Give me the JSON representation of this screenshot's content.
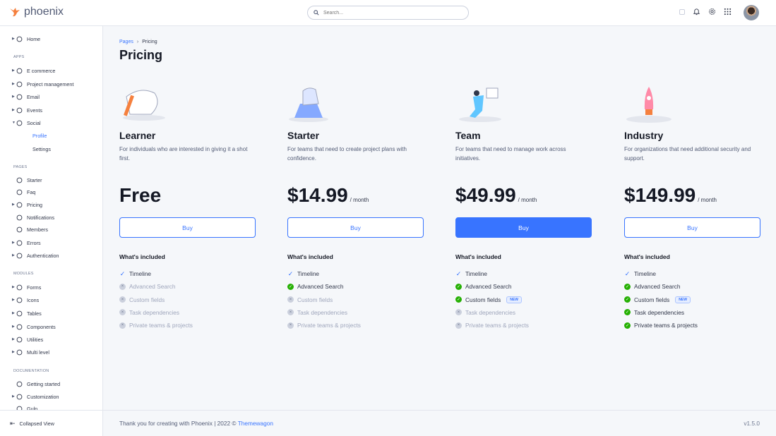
{
  "brand": {
    "name": "phoenix",
    "accent": "#3874ff",
    "logo_color": "#f5803e"
  },
  "search": {
    "placeholder": "Search..."
  },
  "topbar": {
    "icons": [
      "theme-toggle-icon",
      "bell-icon",
      "gear-icon",
      "apps-grid-icon"
    ]
  },
  "sidebar": {
    "items": [
      {
        "type": "item",
        "label": "Home",
        "icon": "pie-chart-icon",
        "caret": true
      },
      {
        "type": "section",
        "label": "APPS"
      },
      {
        "type": "item",
        "label": "E commerce",
        "icon": "cart-icon",
        "caret": true
      },
      {
        "type": "item",
        "label": "Project management",
        "icon": "clipboard-icon",
        "caret": true
      },
      {
        "type": "item",
        "label": "Email",
        "icon": "mail-icon",
        "caret": true
      },
      {
        "type": "item",
        "label": "Events",
        "icon": "bookmark-icon",
        "caret": true
      },
      {
        "type": "item",
        "label": "Social",
        "icon": "share-icon",
        "caret": true,
        "open": true
      },
      {
        "type": "sub",
        "label": "Profile",
        "active": true
      },
      {
        "type": "sub",
        "label": "Settings"
      },
      {
        "type": "section",
        "label": "PAGES"
      },
      {
        "type": "item",
        "label": "Starter",
        "icon": "compass-icon"
      },
      {
        "type": "item",
        "label": "Faq",
        "icon": "help-circle-icon"
      },
      {
        "type": "item",
        "label": "Pricing",
        "icon": "tag-icon",
        "caret": true
      },
      {
        "type": "item",
        "label": "Notifications",
        "icon": "bell-icon"
      },
      {
        "type": "item",
        "label": "Members",
        "icon": "users-icon"
      },
      {
        "type": "item",
        "label": "Errors",
        "icon": "alert-triangle-icon",
        "caret": true
      },
      {
        "type": "item",
        "label": "Authentication",
        "icon": "lock-icon",
        "caret": true
      },
      {
        "type": "section",
        "label": "MODULES"
      },
      {
        "type": "item",
        "label": "Forms",
        "icon": "file-text-icon",
        "caret": true
      },
      {
        "type": "item",
        "label": "Icons",
        "icon": "grid-icon",
        "caret": true
      },
      {
        "type": "item",
        "label": "Tables",
        "icon": "columns-icon",
        "caret": true
      },
      {
        "type": "item",
        "label": "Components",
        "icon": "package-icon",
        "caret": true
      },
      {
        "type": "item",
        "label": "Utilities",
        "icon": "tool-icon",
        "caret": true
      },
      {
        "type": "item",
        "label": "Multi level",
        "icon": "layers-icon",
        "caret": true
      },
      {
        "type": "section",
        "label": "DOCUMENTATION"
      },
      {
        "type": "item",
        "label": "Getting started",
        "icon": "life-buoy-icon"
      },
      {
        "type": "item",
        "label": "Customization",
        "icon": "settings-icon",
        "caret": true
      },
      {
        "type": "item",
        "label": "Gulp",
        "icon": "gulp-icon"
      }
    ],
    "collapse_label": "Collapsed View"
  },
  "breadcrumb": {
    "parent": "Pages",
    "current": "Pricing"
  },
  "page_title": "Pricing",
  "included_label": "What's included",
  "new_badge": "NEW",
  "plans": [
    {
      "name": "Learner",
      "desc": "For individuals who are interested in giving it a shot first.",
      "price": "Free",
      "per": "",
      "button": "Buy",
      "primary": false,
      "features": [
        {
          "label": "Timeline",
          "state": "tick"
        },
        {
          "label": "Advanced Search",
          "state": "off"
        },
        {
          "label": "Custom fields",
          "state": "off"
        },
        {
          "label": "Task dependencies",
          "state": "off"
        },
        {
          "label": "Private teams & projects",
          "state": "off"
        }
      ]
    },
    {
      "name": "Starter",
      "desc": "For teams that need to create project plans with confidence.",
      "price": "$14.99",
      "per": "/ month",
      "button": "Buy",
      "primary": false,
      "features": [
        {
          "label": "Timeline",
          "state": "tick"
        },
        {
          "label": "Advanced Search",
          "state": "on"
        },
        {
          "label": "Custom fields",
          "state": "off"
        },
        {
          "label": "Task dependencies",
          "state": "off"
        },
        {
          "label": "Private teams & projects",
          "state": "off"
        }
      ]
    },
    {
      "name": "Team",
      "desc": "For teams that need to manage work across initiatives.",
      "price": "$49.99",
      "per": "/ month",
      "button": "Buy",
      "primary": true,
      "features": [
        {
          "label": "Timeline",
          "state": "tick"
        },
        {
          "label": "Advanced Search",
          "state": "on"
        },
        {
          "label": "Custom fields",
          "state": "on",
          "badge": true
        },
        {
          "label": "Task dependencies",
          "state": "off"
        },
        {
          "label": "Private teams & projects",
          "state": "off"
        }
      ]
    },
    {
      "name": "Industry",
      "desc": "For organizations that need additional security and support.",
      "price": "$149.99",
      "per": "/ month",
      "button": "Buy",
      "primary": false,
      "features": [
        {
          "label": "Timeline",
          "state": "tick"
        },
        {
          "label": "Advanced Search",
          "state": "on"
        },
        {
          "label": "Custom fields",
          "state": "on",
          "badge": true
        },
        {
          "label": "Task dependencies",
          "state": "on"
        },
        {
          "label": "Private teams & projects",
          "state": "on"
        }
      ]
    }
  ],
  "footer": {
    "text": "Thank you for creating with Phoenix | 2022 ©",
    "link": "Themewagon",
    "version": "v1.5.0"
  }
}
